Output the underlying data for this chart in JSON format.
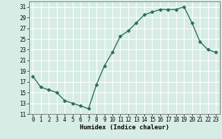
{
  "x": [
    0,
    1,
    2,
    3,
    4,
    5,
    6,
    7,
    8,
    9,
    10,
    11,
    12,
    13,
    14,
    15,
    16,
    17,
    18,
    19,
    20,
    21,
    22,
    23
  ],
  "y": [
    18,
    16,
    15.5,
    15,
    13.5,
    13,
    12.5,
    12,
    16.5,
    20,
    22.5,
    25.5,
    26.5,
    28,
    29.5,
    30,
    30.5,
    30.5,
    30.5,
    31,
    28,
    24.5,
    23,
    22.5
  ],
  "line_color": "#2d6b5e",
  "marker": "D",
  "markersize": 2.5,
  "linewidth": 1.0,
  "xlabel": "Humidex (Indice chaleur)",
  "xlim": [
    -0.5,
    23.5
  ],
  "ylim": [
    11,
    32
  ],
  "yticks": [
    11,
    13,
    15,
    17,
    19,
    21,
    23,
    25,
    27,
    29,
    31
  ],
  "xticks": [
    0,
    1,
    2,
    3,
    4,
    5,
    6,
    7,
    8,
    9,
    10,
    11,
    12,
    13,
    14,
    15,
    16,
    17,
    18,
    19,
    20,
    21,
    22,
    23
  ],
  "background_color": "#d6ece5",
  "grid_color": "#ffffff",
  "tick_fontsize": 5.5,
  "xlabel_fontsize": 6.5
}
